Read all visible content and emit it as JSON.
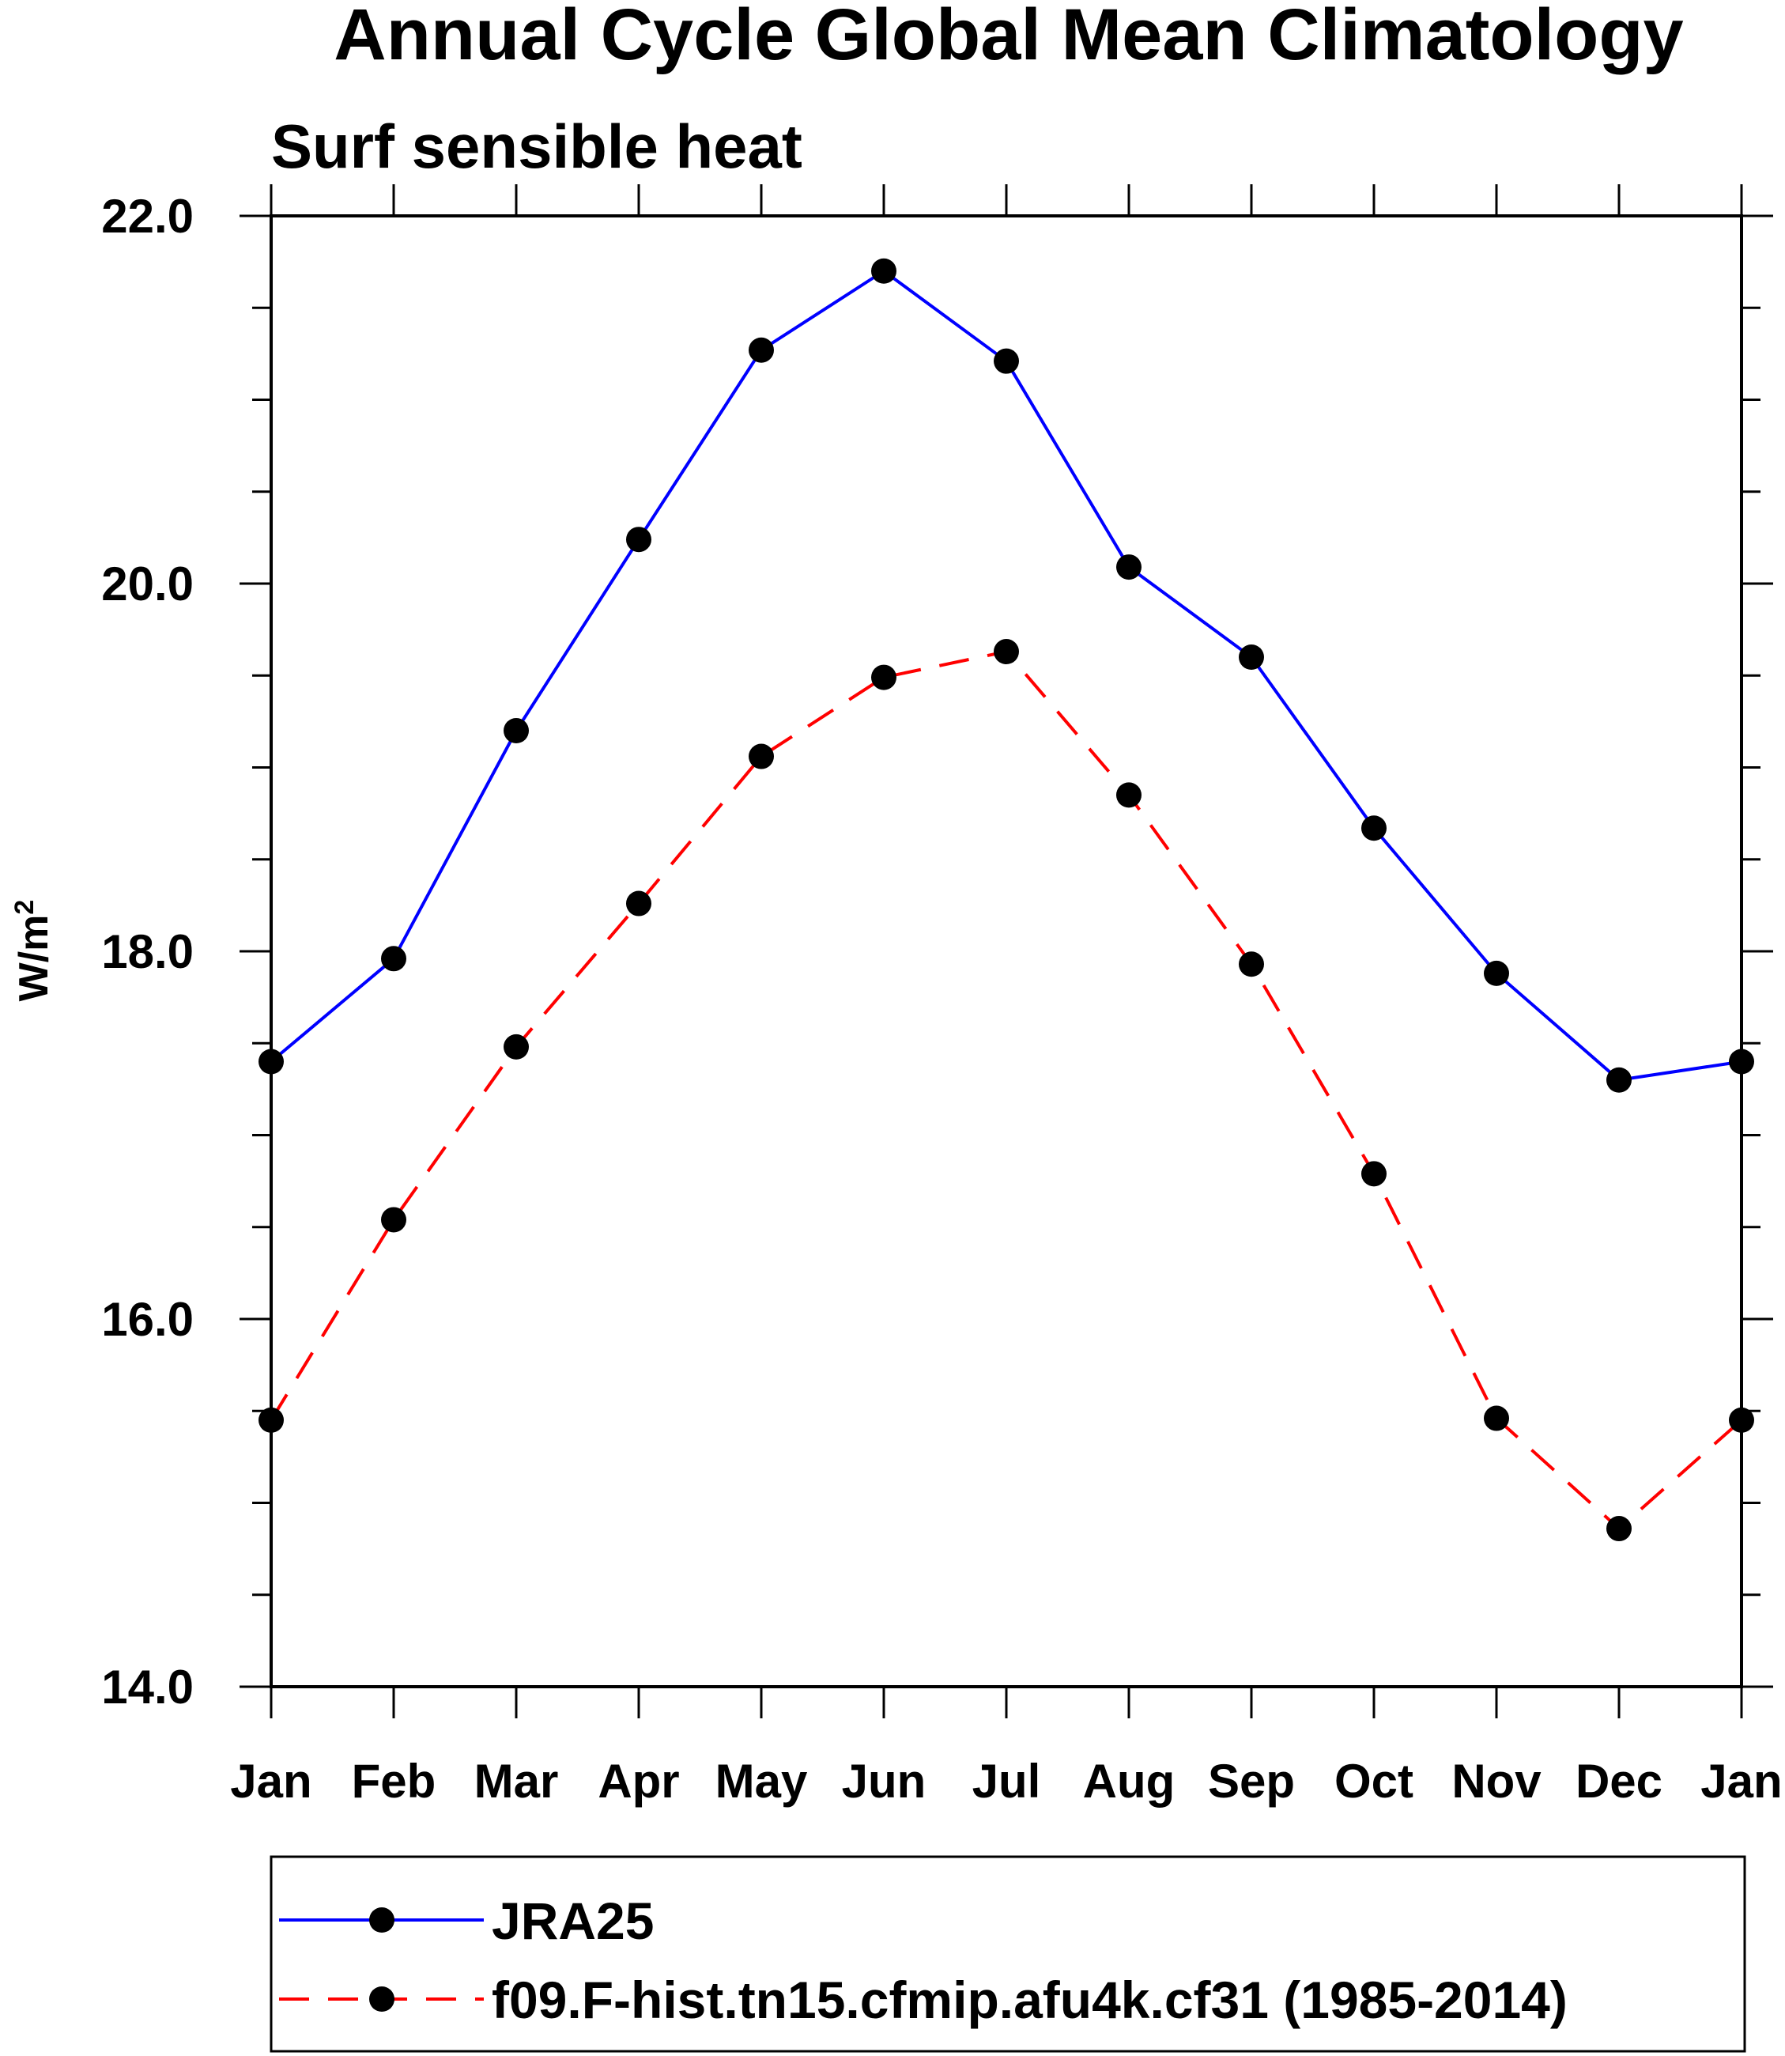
{
  "chart_data": {
    "type": "line",
    "title": "Annual Cycle Global Mean Climatology",
    "subtitle": "Surf sensible heat",
    "xlabel": "",
    "ylabel": "W/m",
    "ylabel_superscript": "2",
    "categories": [
      "Jan",
      "Feb",
      "Mar",
      "Apr",
      "May",
      "Jun",
      "Jul",
      "Aug",
      "Sep",
      "Oct",
      "Nov",
      "Dec",
      "Jan"
    ],
    "ylim": [
      14.0,
      22.0
    ],
    "yticks": [
      14.0,
      16.0,
      18.0,
      20.0,
      22.0
    ],
    "ytick_labels": [
      "14.0",
      "16.0",
      "18.0",
      "20.0",
      "22.0"
    ],
    "y_minor_step": 0.5,
    "grid": false,
    "legend_position": "bottom",
    "series": [
      {
        "name": "JRA25",
        "color": "#0000ff",
        "line_style": "solid",
        "marker": "filled-circle",
        "values": [
          17.4,
          17.96,
          19.2,
          20.24,
          21.27,
          21.7,
          21.21,
          20.09,
          19.6,
          18.67,
          17.88,
          17.3,
          17.4
        ]
      },
      {
        "name": "f09.F-hist.tn15.cfmip.afu4k.cf31 (1985-2014)",
        "color": "#ff0000",
        "line_style": "dashed",
        "marker": "filled-circle",
        "values": [
          15.45,
          16.54,
          17.48,
          18.26,
          19.06,
          19.49,
          19.63,
          18.85,
          17.93,
          16.79,
          15.46,
          14.86,
          15.45
        ]
      }
    ],
    "marker_color": "#000000",
    "axis_color": "#000000"
  }
}
